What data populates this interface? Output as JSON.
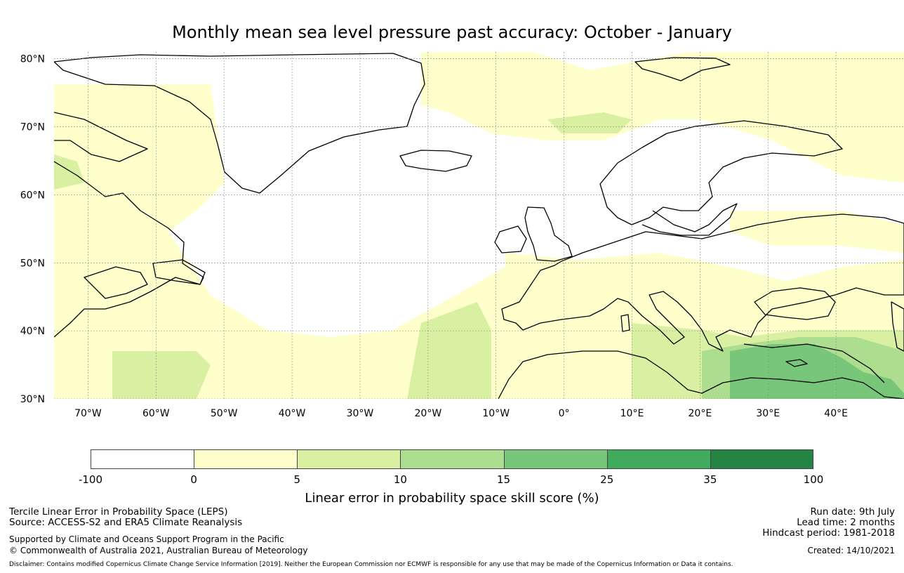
{
  "title": "Monthly mean sea level pressure past accuracy: October - January",
  "map": {
    "lon_range": [
      -75,
      50
    ],
    "lat_range": [
      30,
      81
    ],
    "lat_ticks": [
      "80°N",
      "70°N",
      "60°N",
      "50°N",
      "40°N",
      "30°N"
    ],
    "lon_ticks": [
      "70°W",
      "60°W",
      "50°W",
      "40°W",
      "30°W",
      "20°W",
      "10°W",
      "0°",
      "10°E",
      "20°E",
      "30°E",
      "40°E"
    ],
    "background": "#ffffff",
    "coastline_color": "#000000",
    "gridline_color": "#888888"
  },
  "colorbar": {
    "title": "Linear error in probability space skill score (%)",
    "labels": [
      "-100",
      "0",
      "5",
      "10",
      "15",
      "25",
      "35",
      "100"
    ],
    "colors": [
      "#ffffff",
      "#ffffcc",
      "#d9f0a3",
      "#addd8e",
      "#78c679",
      "#41ab5d",
      "#238443"
    ]
  },
  "footer": {
    "left_line1": "Tercile Linear Error in Probability Space (LEPS)",
    "left_line2": "Source: ACCESS-S2 and ERA5 Climate Reanalysis",
    "left_line3": "Supported by Climate and Oceans Support Program in the Pacific",
    "left_line4": "© Commonwealth of Australia 2021, Australian Bureau of Meteorology",
    "right_line1": "Run date: 9th July",
    "right_line2": "Lead time: 2 months",
    "right_line3": "Hindcast period: 1981-2018",
    "right_line4": "Created: 14/10/2021",
    "disclaimer": "Disclaimer: Contains modified Copernicus Climate Change Service Information [2019]. Neither the European Commission nor ECMWF is responsible for any use that may be made of the Copernicus Information or Data it contains."
  }
}
